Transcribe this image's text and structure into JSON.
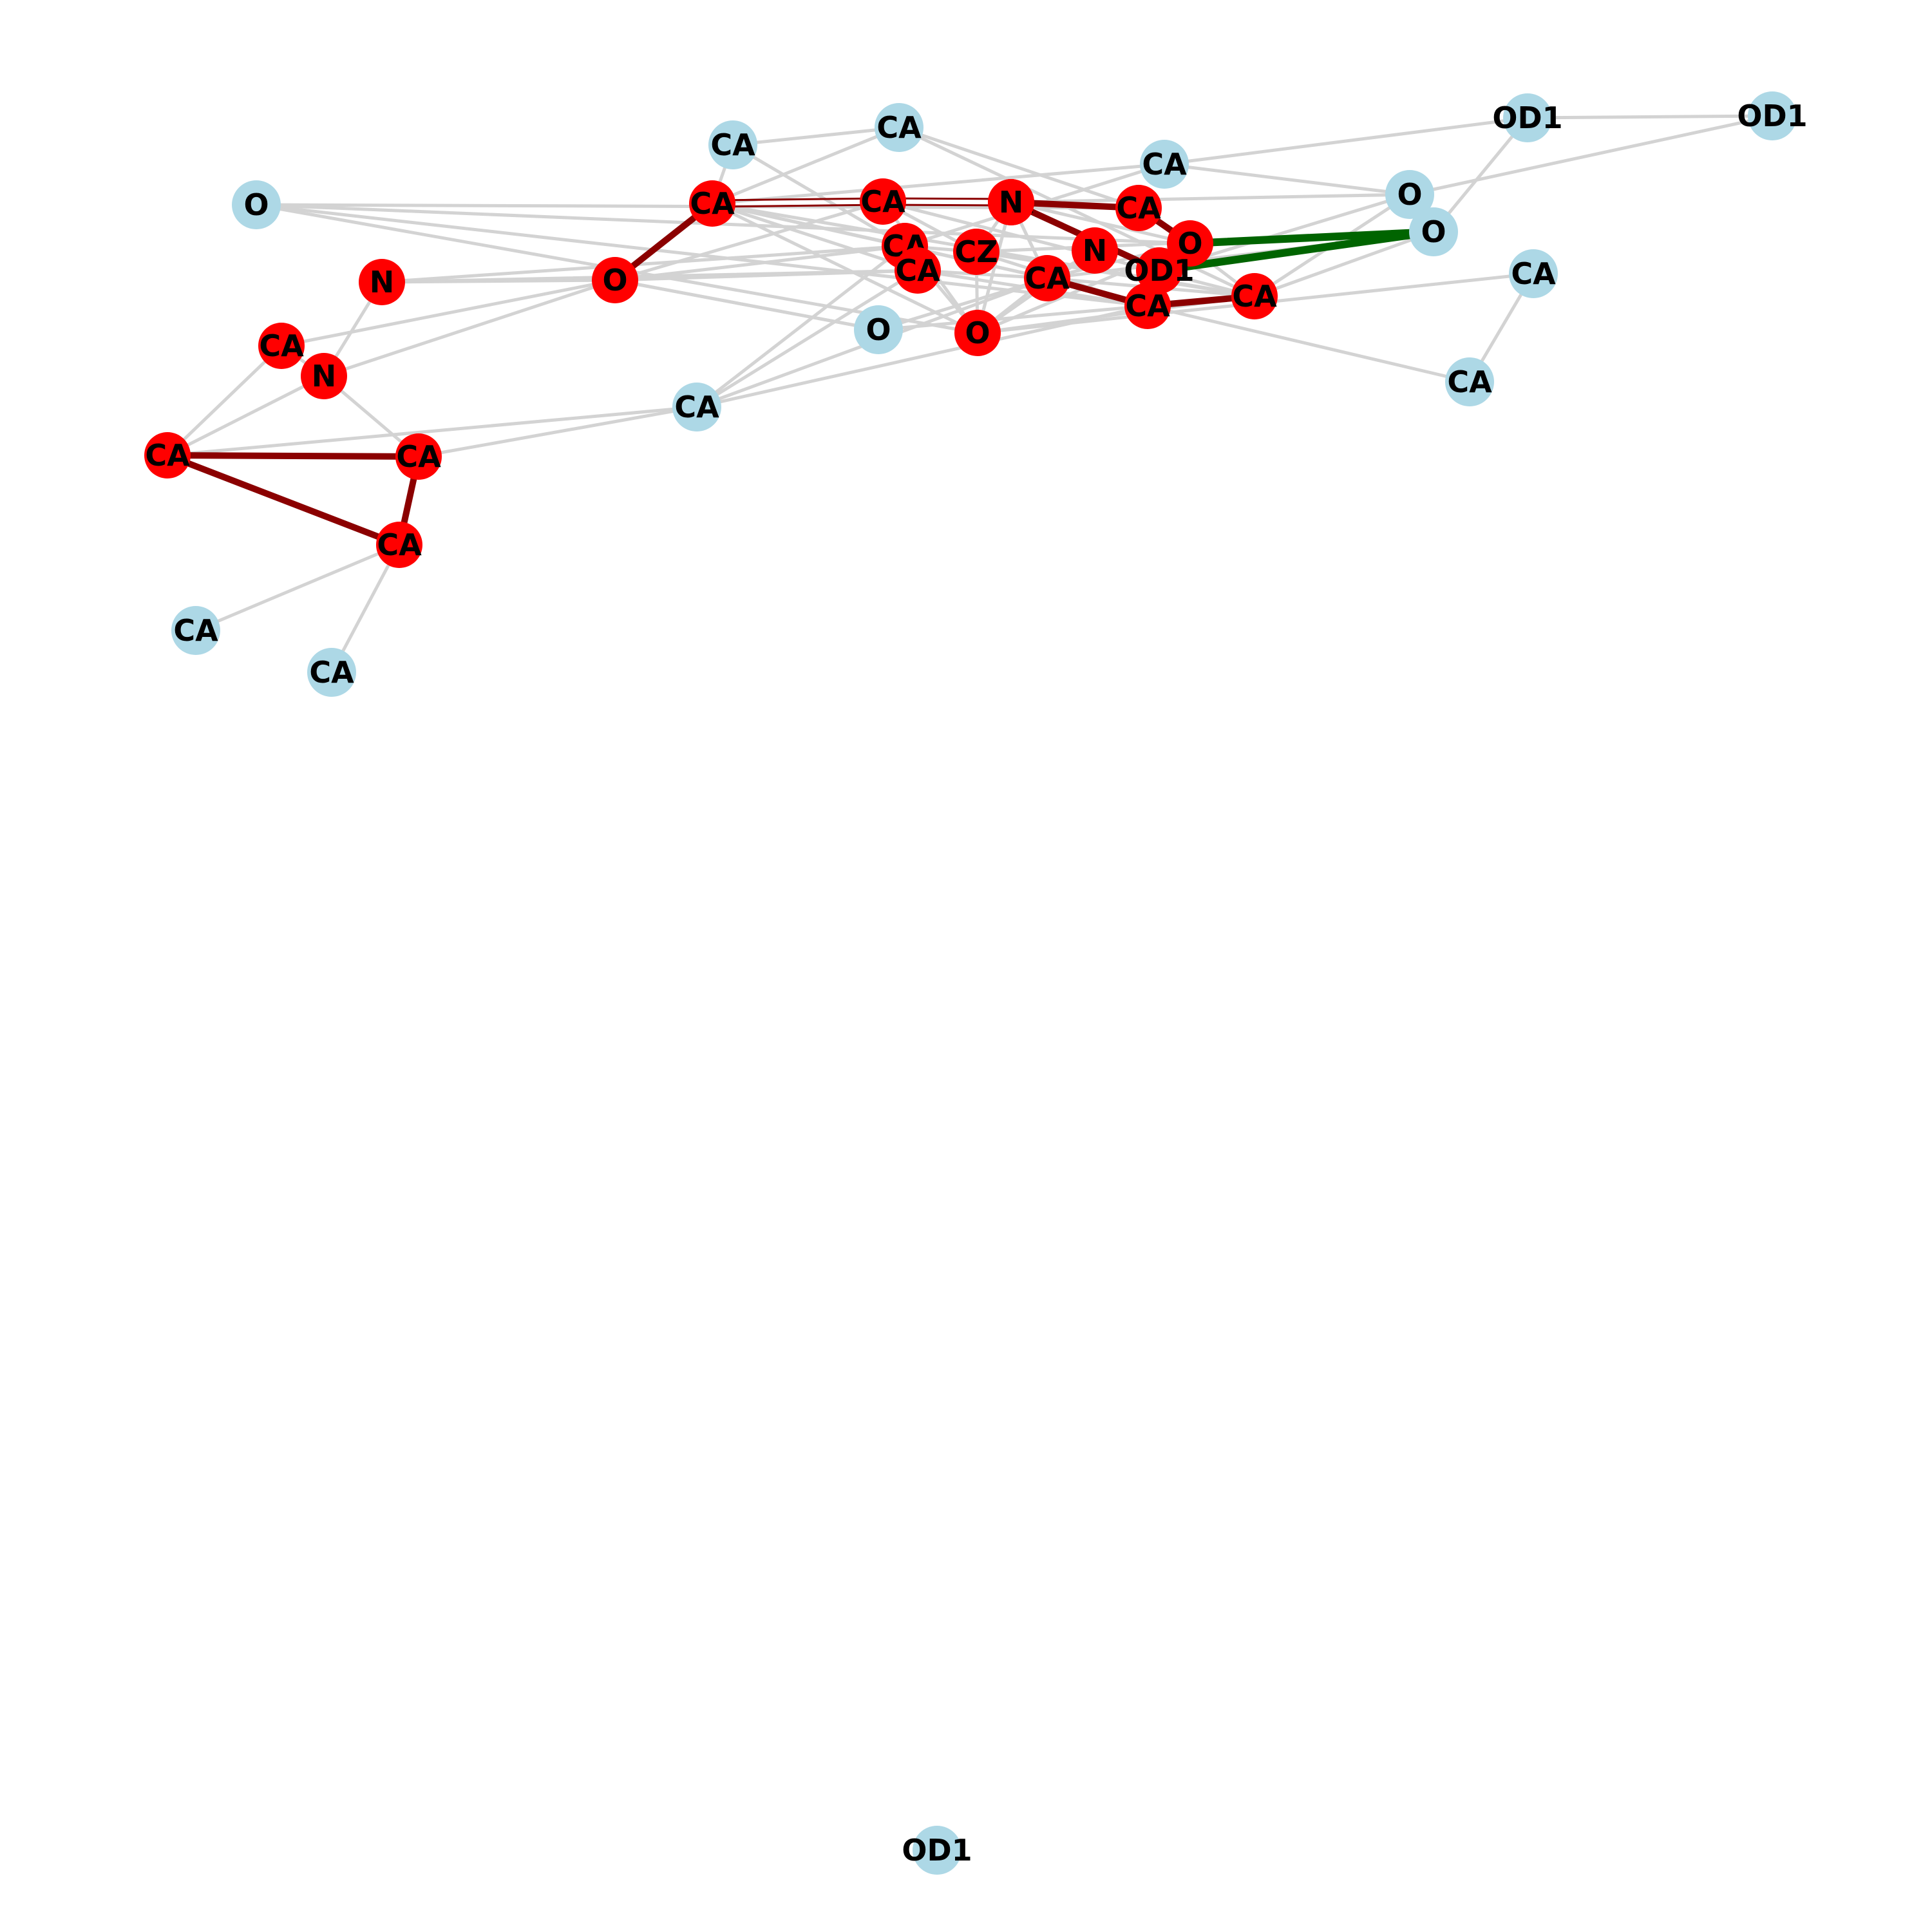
{
  "colors": {
    "background": "#ffffff",
    "node_default": "#add8e6",
    "node_highlight": "#ff0000",
    "edge_default": "#d3d3d3",
    "edge_highlight": "#8b0000",
    "edge_special": "#006400",
    "label": "#000000"
  },
  "nodes": [
    {
      "id": "n1",
      "label": "CA",
      "highlight": false
    },
    {
      "id": "n2",
      "label": "CA",
      "highlight": false
    },
    {
      "id": "n3",
      "label": "OD1",
      "highlight": false
    },
    {
      "id": "n4",
      "label": "OD1",
      "highlight": false
    },
    {
      "id": "n5",
      "label": "CA",
      "highlight": false
    },
    {
      "id": "n6",
      "label": "O",
      "highlight": false
    },
    {
      "id": "n7",
      "label": "O",
      "highlight": false
    },
    {
      "id": "n8",
      "label": "O",
      "highlight": false
    },
    {
      "id": "n9",
      "label": "CA",
      "highlight": false
    },
    {
      "id": "n10",
      "label": "CA",
      "highlight": false
    },
    {
      "id": "n11",
      "label": "O",
      "highlight": false
    },
    {
      "id": "n12",
      "label": "CA",
      "highlight": false
    },
    {
      "id": "n13",
      "label": "CA",
      "highlight": false
    },
    {
      "id": "n14",
      "label": "CA",
      "highlight": false
    },
    {
      "id": "n15",
      "label": "OD1",
      "highlight": false
    },
    {
      "id": "r1",
      "label": "CA",
      "highlight": true
    },
    {
      "id": "r2",
      "label": "CA",
      "highlight": true
    },
    {
      "id": "r3",
      "label": "CA",
      "highlight": true
    },
    {
      "id": "r4",
      "label": "CA",
      "highlight": true
    },
    {
      "id": "r5",
      "label": "N",
      "highlight": true
    },
    {
      "id": "r6",
      "label": "O",
      "highlight": true
    },
    {
      "id": "r7",
      "label": "CA",
      "highlight": true
    },
    {
      "id": "r8",
      "label": "CA",
      "highlight": true
    },
    {
      "id": "r9",
      "label": "CZ",
      "highlight": true
    },
    {
      "id": "r10",
      "label": "N",
      "highlight": true
    },
    {
      "id": "r11",
      "label": "OD1",
      "highlight": true
    },
    {
      "id": "r12",
      "label": "CA",
      "highlight": true
    },
    {
      "id": "r13",
      "label": "O",
      "highlight": true
    },
    {
      "id": "r14",
      "label": "CA",
      "highlight": true
    },
    {
      "id": "r15",
      "label": "CA",
      "highlight": true
    },
    {
      "id": "r16",
      "label": "CA",
      "highlight": true
    },
    {
      "id": "r17",
      "label": "N",
      "highlight": true
    },
    {
      "id": "r18",
      "label": "CA",
      "highlight": true
    },
    {
      "id": "r19",
      "label": "CA",
      "highlight": true
    },
    {
      "id": "r20",
      "label": "CA",
      "highlight": true
    },
    {
      "id": "r21",
      "label": "N",
      "highlight": true
    },
    {
      "id": "r22",
      "label": "O",
      "highlight": true
    }
  ],
  "edges": [
    {
      "source": "n1",
      "target": "n2",
      "kind": "default"
    },
    {
      "source": "n1",
      "target": "r7",
      "kind": "default"
    },
    {
      "source": "n1",
      "target": "r1",
      "kind": "default"
    },
    {
      "source": "n2",
      "target": "r1",
      "kind": "default"
    },
    {
      "source": "n2",
      "target": "r4",
      "kind": "default"
    },
    {
      "source": "n2",
      "target": "r12",
      "kind": "default"
    },
    {
      "source": "n3",
      "target": "n4",
      "kind": "default"
    },
    {
      "source": "n3",
      "target": "n5",
      "kind": "default"
    },
    {
      "source": "n3",
      "target": "n7",
      "kind": "default"
    },
    {
      "source": "n4",
      "target": "n6",
      "kind": "default"
    },
    {
      "source": "n5",
      "target": "r1",
      "kind": "default"
    },
    {
      "source": "n5",
      "target": "r7",
      "kind": "default"
    },
    {
      "source": "n6",
      "target": "n5",
      "kind": "default"
    },
    {
      "source": "n6",
      "target": "r3",
      "kind": "default"
    },
    {
      "source": "n6",
      "target": "r11",
      "kind": "default"
    },
    {
      "source": "n7",
      "target": "r12",
      "kind": "default"
    },
    {
      "source": "n7",
      "target": "r9",
      "kind": "default"
    },
    {
      "source": "n9",
      "target": "n10",
      "kind": "default"
    },
    {
      "source": "n9",
      "target": "r13",
      "kind": "default"
    },
    {
      "source": "n10",
      "target": "r14",
      "kind": "default"
    },
    {
      "source": "n11",
      "target": "r15",
      "kind": "default"
    },
    {
      "source": "n11",
      "target": "r22",
      "kind": "default"
    },
    {
      "source": "n8",
      "target": "r6",
      "kind": "default"
    },
    {
      "source": "n8",
      "target": "r14",
      "kind": "default"
    },
    {
      "source": "n8",
      "target": "r4",
      "kind": "default"
    },
    {
      "source": "n12",
      "target": "r8",
      "kind": "default"
    },
    {
      "source": "n12",
      "target": "r14",
      "kind": "default"
    },
    {
      "source": "n12",
      "target": "r18",
      "kind": "default"
    },
    {
      "source": "n12",
      "target": "r19",
      "kind": "default"
    },
    {
      "source": "n13",
      "target": "r20",
      "kind": "default"
    },
    {
      "source": "n14",
      "target": "r20",
      "kind": "default"
    },
    {
      "source": "r1",
      "target": "r2",
      "kind": "highlight_double"
    },
    {
      "source": "r2",
      "target": "r3",
      "kind": "highlight_double"
    },
    {
      "source": "r3",
      "target": "r4",
      "kind": "highlight"
    },
    {
      "source": "r4",
      "target": "r6",
      "kind": "highlight"
    },
    {
      "source": "r3",
      "target": "r11",
      "kind": "highlight"
    },
    {
      "source": "r1",
      "target": "r22",
      "kind": "highlight"
    },
    {
      "source": "r14",
      "target": "r12",
      "kind": "highlight"
    },
    {
      "source": "r14",
      "target": "r15",
      "kind": "highlight"
    },
    {
      "source": "r14",
      "target": "r11",
      "kind": "highlight"
    },
    {
      "source": "r18",
      "target": "r19",
      "kind": "highlight"
    },
    {
      "source": "r19",
      "target": "r20",
      "kind": "highlight"
    },
    {
      "source": "r18",
      "target": "r20",
      "kind": "highlight"
    },
    {
      "source": "r6",
      "target": "n7",
      "kind": "special"
    },
    {
      "source": "r11",
      "target": "n7",
      "kind": "special"
    },
    {
      "source": "r1",
      "target": "r7",
      "kind": "default"
    },
    {
      "source": "r1",
      "target": "r8",
      "kind": "default"
    },
    {
      "source": "r1",
      "target": "r12",
      "kind": "default"
    },
    {
      "source": "r1",
      "target": "r15",
      "kind": "default"
    },
    {
      "source": "r1",
      "target": "r13",
      "kind": "default"
    },
    {
      "source": "r2",
      "target": "r12",
      "kind": "default"
    },
    {
      "source": "r2",
      "target": "r9",
      "kind": "default"
    },
    {
      "source": "r2",
      "target": "r13",
      "kind": "default"
    },
    {
      "source": "r3",
      "target": "r9",
      "kind": "default"
    },
    {
      "source": "r3",
      "target": "r13",
      "kind": "default"
    },
    {
      "source": "r3",
      "target": "r15",
      "kind": "default"
    },
    {
      "source": "r4",
      "target": "r12",
      "kind": "default"
    },
    {
      "source": "r5",
      "target": "r6",
      "kind": "default"
    },
    {
      "source": "r5",
      "target": "r13",
      "kind": "default"
    },
    {
      "source": "r5",
      "target": "r15",
      "kind": "default"
    },
    {
      "source": "r6",
      "target": "r13",
      "kind": "default"
    },
    {
      "source": "r6",
      "target": "r15",
      "kind": "default"
    },
    {
      "source": "r7",
      "target": "r9",
      "kind": "default"
    },
    {
      "source": "r7",
      "target": "r13",
      "kind": "default"
    },
    {
      "source": "r7",
      "target": "r15",
      "kind": "default"
    },
    {
      "source": "r8",
      "target": "r14",
      "kind": "default"
    },
    {
      "source": "r8",
      "target": "r15",
      "kind": "default"
    },
    {
      "source": "r9",
      "target": "r12",
      "kind": "default"
    },
    {
      "source": "r9",
      "target": "r14",
      "kind": "default"
    },
    {
      "source": "r9",
      "target": "r13",
      "kind": "default"
    },
    {
      "source": "r10",
      "target": "r13",
      "kind": "default"
    },
    {
      "source": "r10",
      "target": "r15",
      "kind": "default"
    },
    {
      "source": "r12",
      "target": "r13",
      "kind": "default"
    },
    {
      "source": "r12",
      "target": "r15",
      "kind": "default"
    },
    {
      "source": "r15",
      "target": "r13",
      "kind": "default"
    },
    {
      "source": "r16",
      "target": "r22",
      "kind": "default"
    },
    {
      "source": "r16",
      "target": "r21",
      "kind": "default"
    },
    {
      "source": "r16",
      "target": "r18",
      "kind": "default"
    },
    {
      "source": "r17",
      "target": "r22",
      "kind": "default"
    },
    {
      "source": "r17",
      "target": "r21",
      "kind": "default"
    },
    {
      "source": "r21",
      "target": "r22",
      "kind": "default"
    },
    {
      "source": "r21",
      "target": "r18",
      "kind": "default"
    },
    {
      "source": "r21",
      "target": "r19",
      "kind": "default"
    },
    {
      "source": "r22",
      "target": "r2",
      "kind": "default"
    },
    {
      "source": "r22",
      "target": "r7",
      "kind": "default"
    },
    {
      "source": "r22",
      "target": "r8",
      "kind": "default"
    },
    {
      "source": "r22",
      "target": "n11",
      "kind": "default"
    },
    {
      "source": "r17",
      "target": "r7",
      "kind": "default"
    },
    {
      "source": "r17",
      "target": "r8",
      "kind": "default"
    },
    {
      "source": "n8",
      "target": "r13",
      "kind": "default"
    },
    {
      "source": "n7",
      "target": "r15",
      "kind": "default"
    },
    {
      "source": "n6",
      "target": "r12",
      "kind": "default"
    },
    {
      "source": "n11",
      "target": "r14",
      "kind": "default"
    },
    {
      "source": "n12",
      "target": "r7",
      "kind": "default"
    },
    {
      "source": "n12",
      "target": "r15",
      "kind": "default"
    }
  ]
}
